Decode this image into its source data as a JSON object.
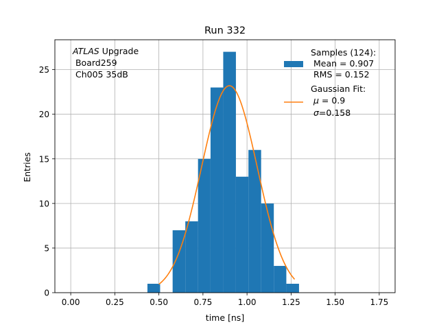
{
  "chart_data": {
    "type": "bar",
    "title": "Run 332",
    "xlabel": "time [ns]",
    "ylabel": "Entries",
    "xlim": [
      -0.09,
      1.84
    ],
    "ylim": [
      0,
      28.35
    ],
    "grid": true,
    "x_ticks": [
      0.0,
      0.25,
      0.5,
      0.75,
      1.0,
      1.25,
      1.5,
      1.75
    ],
    "x_tick_labels": [
      "0.00",
      "0.25",
      "0.50",
      "0.75",
      "1.00",
      "1.25",
      "1.50",
      "1.75"
    ],
    "y_ticks": [
      0,
      5,
      10,
      15,
      20,
      25
    ],
    "y_tick_labels": [
      "0",
      "5",
      "10",
      "15",
      "20",
      "25"
    ],
    "bar_color": "#1f77b4",
    "fit_color": "#ff7f0e",
    "bins": [
      {
        "x0": 0.435,
        "x1": 0.507,
        "count": 1
      },
      {
        "x0": 0.507,
        "x1": 0.578,
        "count": 0
      },
      {
        "x0": 0.578,
        "x1": 0.65,
        "count": 7
      },
      {
        "x0": 0.65,
        "x1": 0.722,
        "count": 8
      },
      {
        "x0": 0.722,
        "x1": 0.793,
        "count": 15
      },
      {
        "x0": 0.793,
        "x1": 0.865,
        "count": 23
      },
      {
        "x0": 0.865,
        "x1": 0.937,
        "count": 27
      },
      {
        "x0": 0.937,
        "x1": 1.008,
        "count": 13
      },
      {
        "x0": 1.008,
        "x1": 1.08,
        "count": 16
      },
      {
        "x0": 1.08,
        "x1": 1.152,
        "count": 10
      },
      {
        "x0": 1.152,
        "x1": 1.223,
        "count": 3
      },
      {
        "x0": 1.223,
        "x1": 1.295,
        "count": 1
      }
    ],
    "fit": {
      "mu": 0.9,
      "sigma": 0.158,
      "amplitude": 23.2,
      "x_range": [
        0.5,
        1.27
      ]
    },
    "annotation": {
      "line1_italic": "ATLAS",
      "line1_rest": " Upgrade",
      "line2": " Board259",
      "line3": " Ch005 35dB"
    },
    "legend": {
      "position": "top-right",
      "samples_lines": [
        "Samples (124):",
        " Mean = 0.907",
        " RMS = 0.152"
      ],
      "fit_line1": "Gaussian Fit:",
      "fit_mu_prefix": " ",
      "fit_mu_symbol": "μ",
      "fit_mu_value": " = 0.9",
      "fit_sigma_prefix": " ",
      "fit_sigma_symbol": "σ",
      "fit_sigma_value": "=0.158"
    }
  }
}
